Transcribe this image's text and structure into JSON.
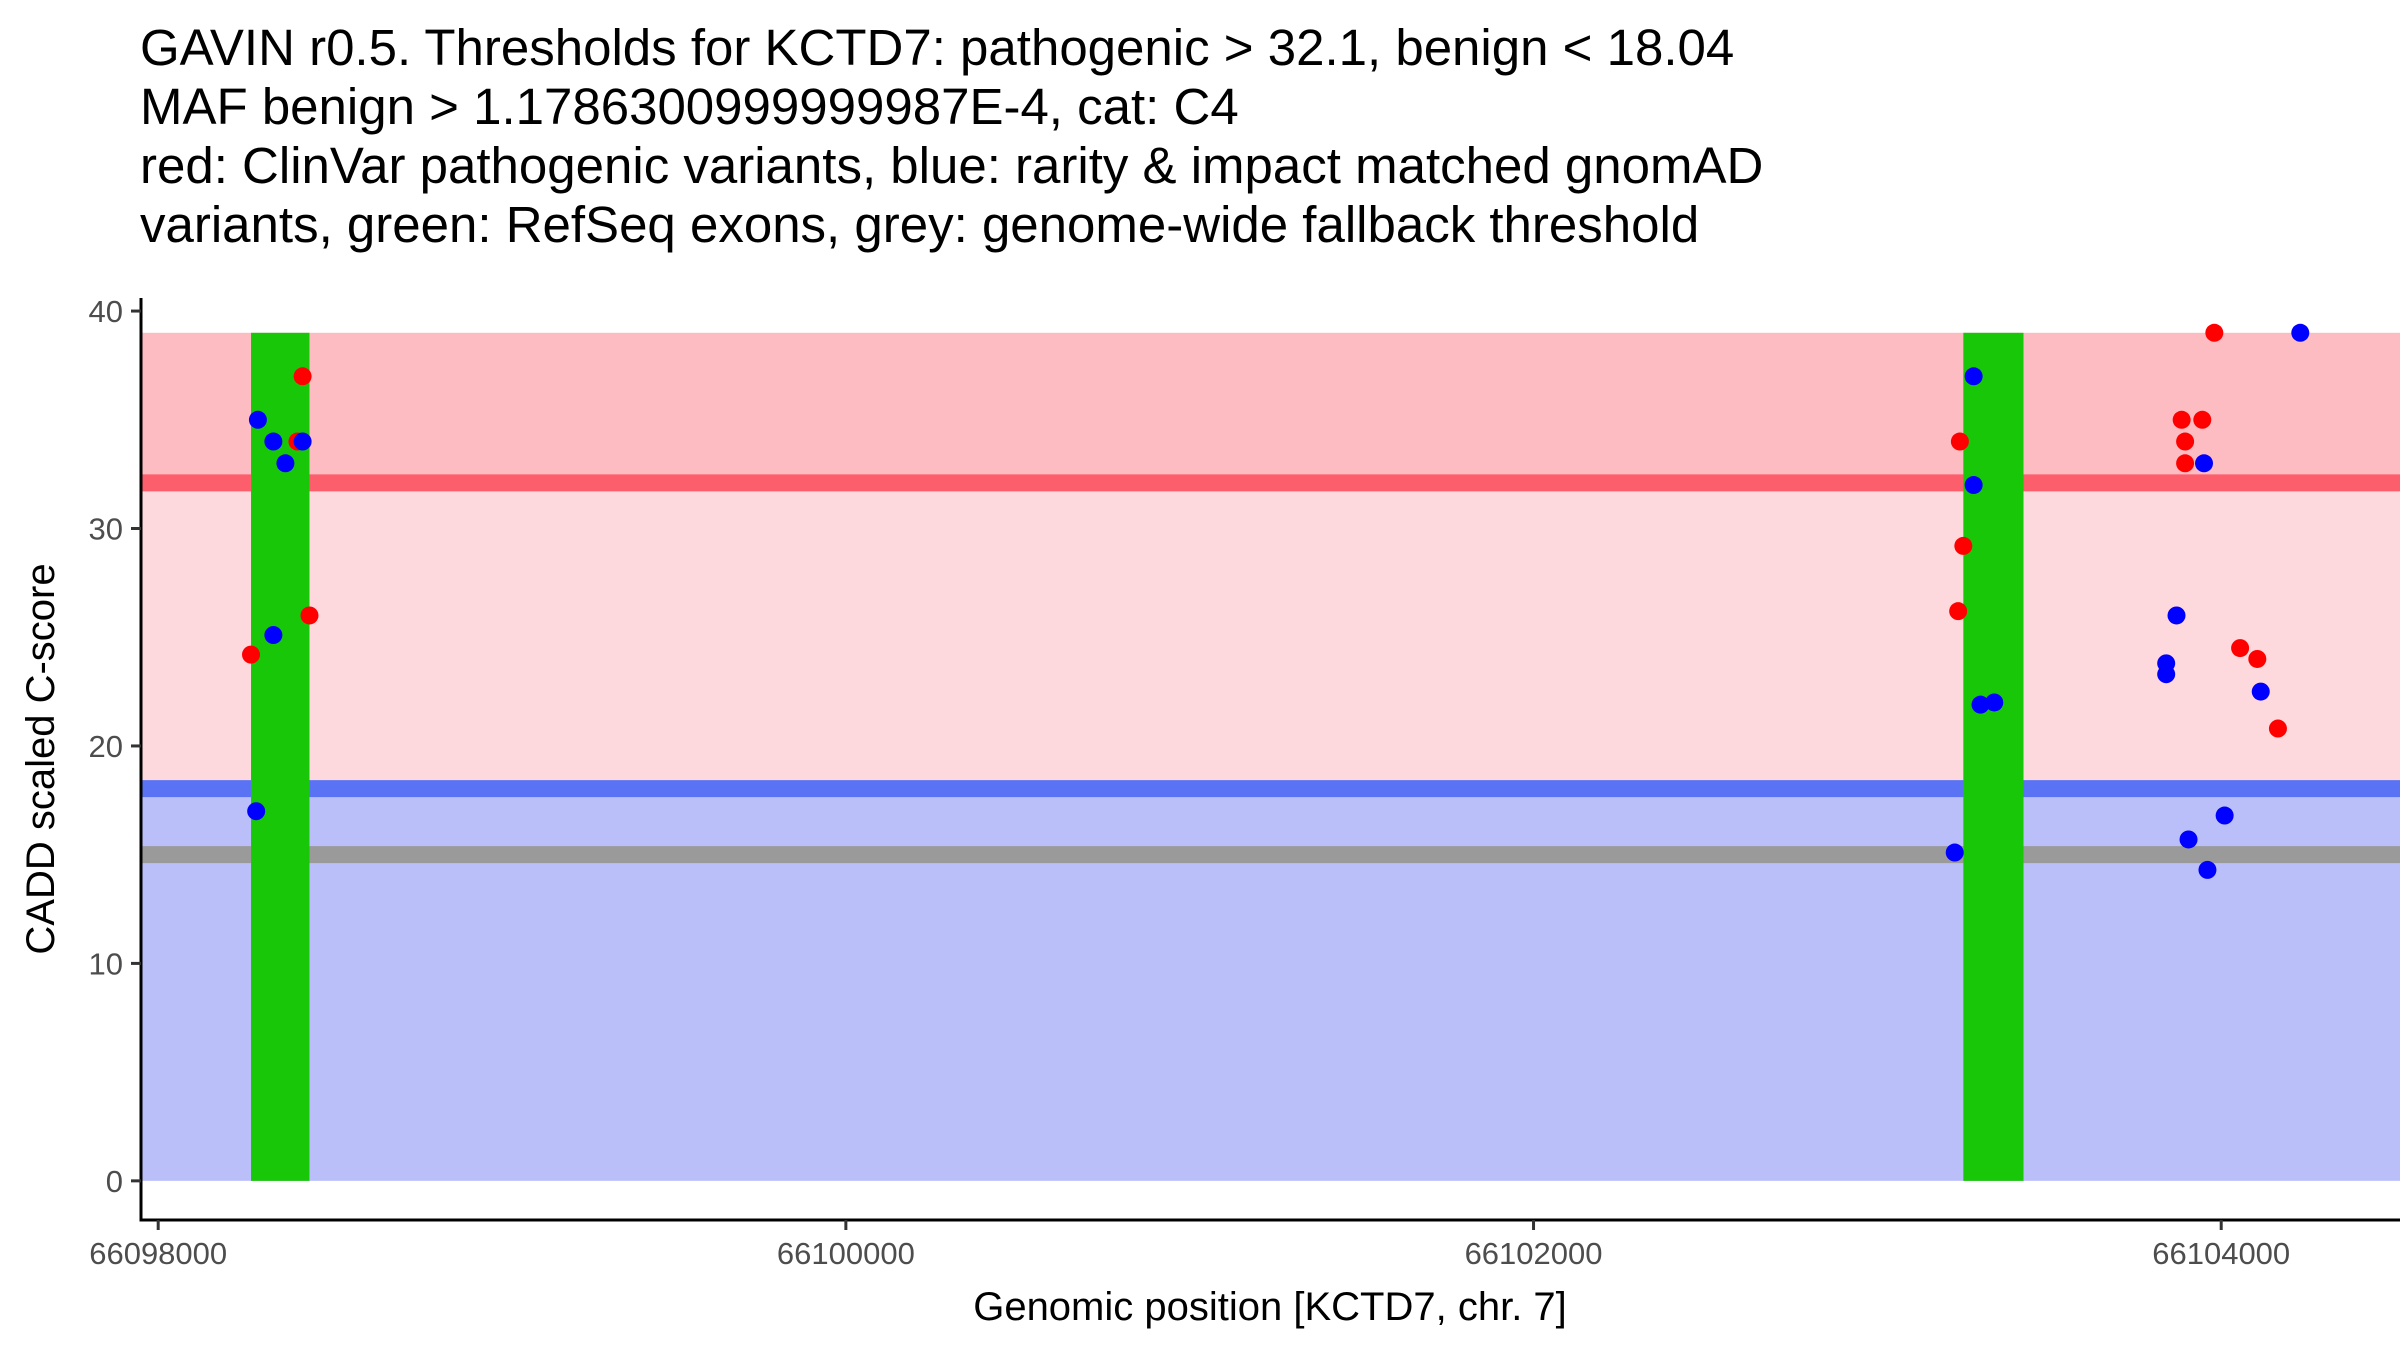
{
  "title_lines": [
    "GAVIN r0.5. Thresholds for KCTD7: pathogenic > 32.1, benign < 18.04",
    "MAF benign > 1.1786300999999987E-4, cat: C4",
    "red: ClinVar pathogenic variants, blue: rarity & impact matched gnomAD",
    "variants, green: RefSeq exons, grey: genome-wide fallback threshold"
  ],
  "chart_data": {
    "type": "scatter",
    "xlabel": "Genomic position [KCTD7, chr. 7]",
    "ylabel": "CADD scaled C-score",
    "xlim": [
      66097950,
      66104520
    ],
    "ylim": [
      -1.8,
      40.6
    ],
    "x_ticks": [
      66098000,
      66100000,
      66102000,
      66104000
    ],
    "x_tick_labels": [
      "66098000",
      "66100000",
      "66102000",
      "66104000"
    ],
    "y_ticks": [
      0,
      10,
      20,
      30,
      40
    ],
    "y_tick_labels": [
      "0",
      "10",
      "20",
      "30",
      "40"
    ],
    "grid": false,
    "thresholds": {
      "pathogenic": 32.1,
      "benign": 18.04,
      "genome_wide_fallback": 15.0,
      "max_score": 39.0
    },
    "colors": {
      "pathogenic_region": "#fdbcc2",
      "intermediate_region": "#fdd8dd",
      "benign_region": "#babffa",
      "pathogenic_line": "#fd5e6b",
      "benign_line": "#5a73f5",
      "fallback_line": "#9a9a9a",
      "exons": "#18c808",
      "clinvar": "#ff0000",
      "gnomad": "#0000ff"
    },
    "exons": [
      {
        "start": 66098270,
        "end": 66098440
      },
      {
        "start": 66103250,
        "end": 66103425
      }
    ],
    "series": [
      {
        "name": "ClinVar pathogenic",
        "color": "#ff0000",
        "points": [
          {
            "x": 66098270,
            "y": 24.2
          },
          {
            "x": 66098420,
            "y": 37.0
          },
          {
            "x": 66098405,
            "y": 34.0
          },
          {
            "x": 66098440,
            "y": 26.0
          },
          {
            "x": 66103240,
            "y": 34.0
          },
          {
            "x": 66103250,
            "y": 29.2
          },
          {
            "x": 66103235,
            "y": 26.2
          },
          {
            "x": 66103980,
            "y": 39.0
          },
          {
            "x": 66103885,
            "y": 35.0
          },
          {
            "x": 66103945,
            "y": 35.0
          },
          {
            "x": 66103895,
            "y": 34.0
          },
          {
            "x": 66103895,
            "y": 33.0
          },
          {
            "x": 66104055,
            "y": 24.5
          },
          {
            "x": 66104105,
            "y": 24.0
          },
          {
            "x": 66104165,
            "y": 20.8
          }
        ]
      },
      {
        "name": "gnomAD matched",
        "color": "#0000ff",
        "points": [
          {
            "x": 66098290,
            "y": 35.0
          },
          {
            "x": 66098335,
            "y": 34.0
          },
          {
            "x": 66098370,
            "y": 33.0
          },
          {
            "x": 66098420,
            "y": 34.0
          },
          {
            "x": 66098335,
            "y": 25.1
          },
          {
            "x": 66098285,
            "y": 17.0
          },
          {
            "x": 66103280,
            "y": 37.0
          },
          {
            "x": 66103280,
            "y": 32.0
          },
          {
            "x": 66103300,
            "y": 21.9
          },
          {
            "x": 66103340,
            "y": 22.0
          },
          {
            "x": 66103225,
            "y": 15.1
          },
          {
            "x": 66104230,
            "y": 39.0
          },
          {
            "x": 66103950,
            "y": 33.0
          },
          {
            "x": 66103870,
            "y": 26.0
          },
          {
            "x": 66103840,
            "y": 23.8
          },
          {
            "x": 66103840,
            "y": 23.3
          },
          {
            "x": 66104115,
            "y": 22.5
          },
          {
            "x": 66104010,
            "y": 16.8
          },
          {
            "x": 66103905,
            "y": 15.7
          },
          {
            "x": 66103960,
            "y": 14.3
          }
        ]
      }
    ]
  }
}
